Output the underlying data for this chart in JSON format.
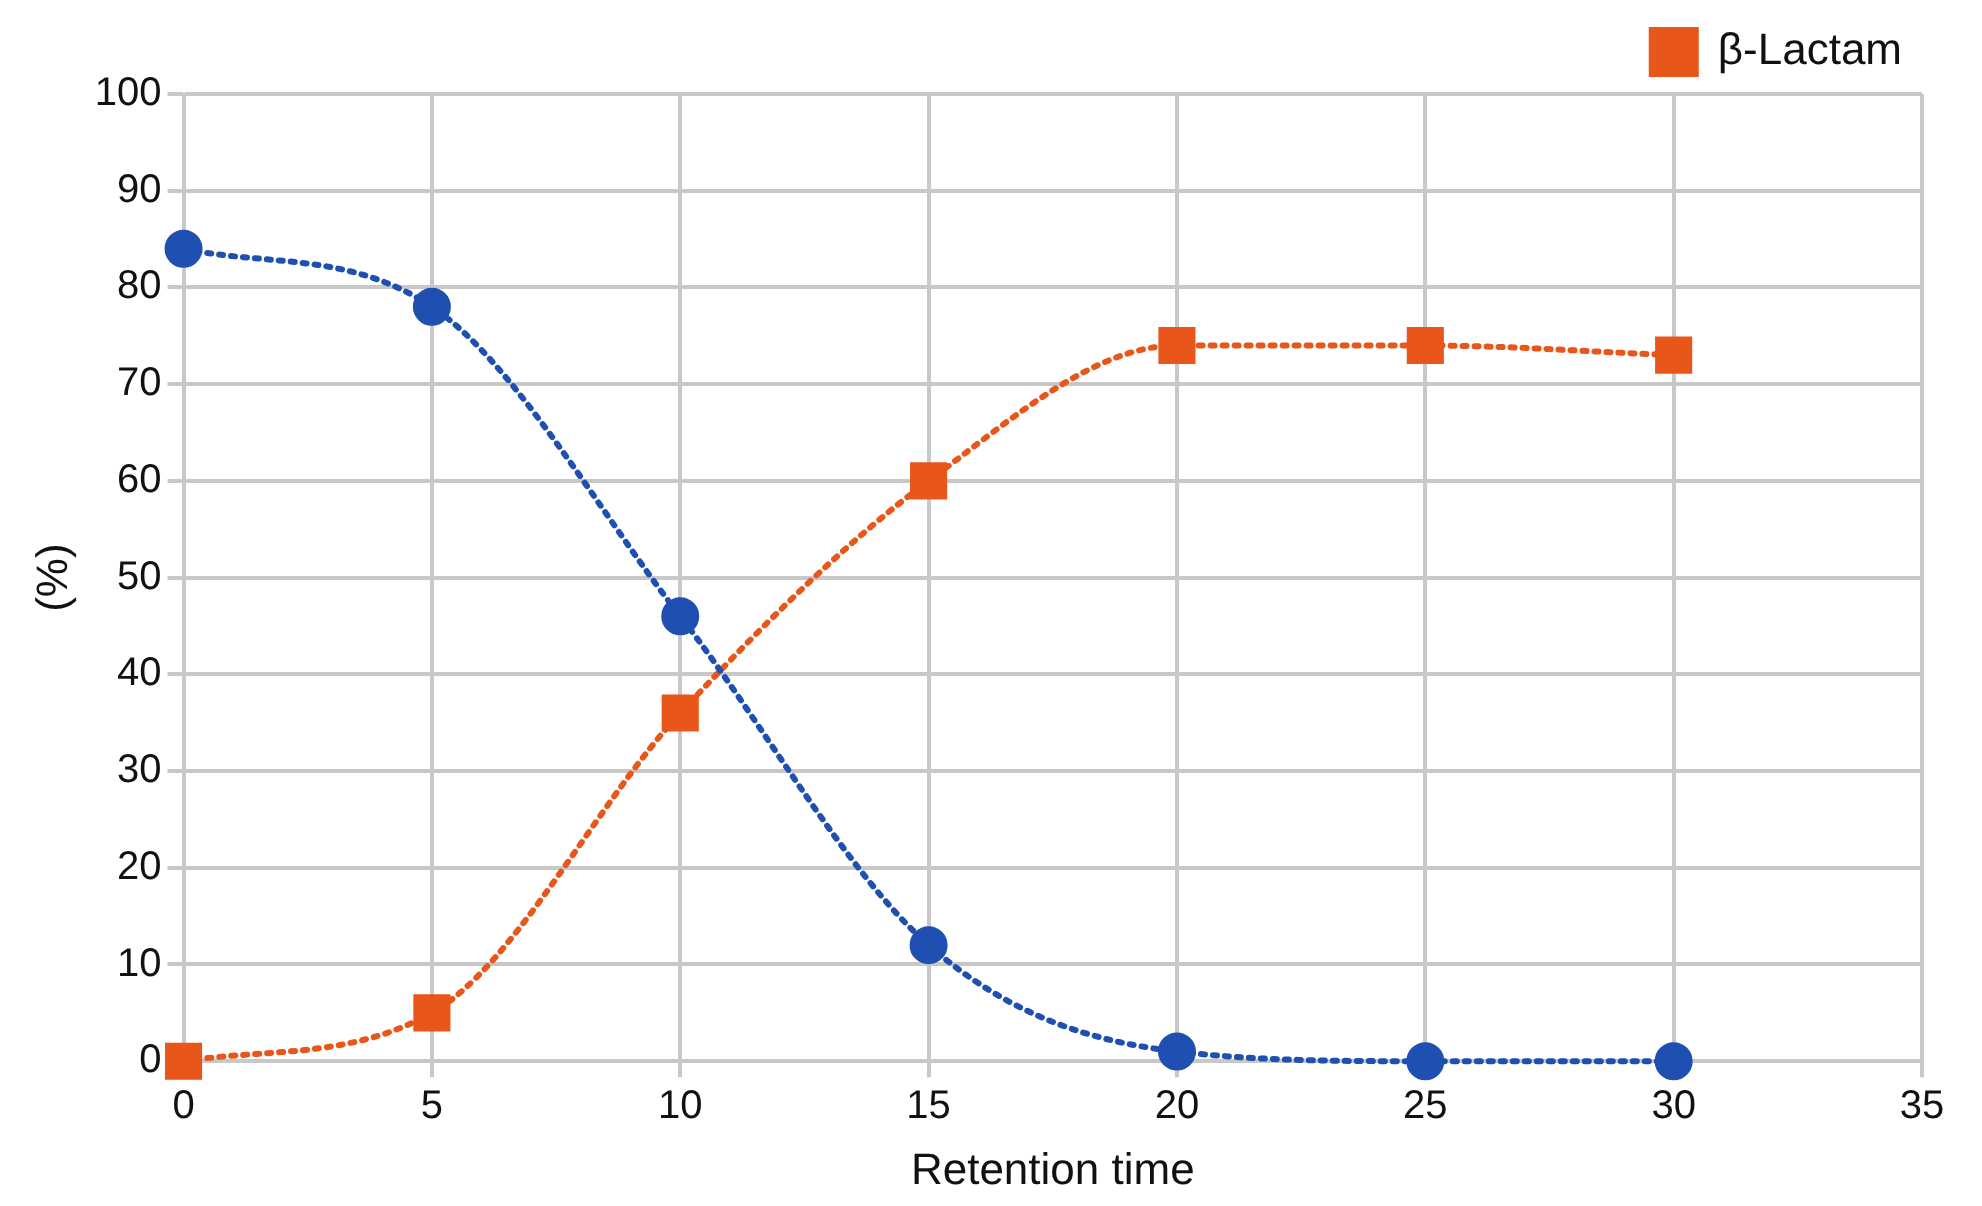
{
  "chart_data": {
    "type": "line",
    "xlabel": "Retention time",
    "ylabel": "(%)",
    "x": [
      0,
      5,
      10,
      15,
      20,
      25,
      30
    ],
    "series": [
      {
        "color": "#1f4fb0",
        "marker": "circle",
        "values": [
          84,
          78,
          46,
          12,
          1,
          0,
          0
        ]
      },
      {
        "name": "β-Lactam",
        "color": "#e8561a",
        "marker": "square",
        "values": [
          0,
          5,
          36,
          60,
          74,
          74,
          73
        ]
      }
    ],
    "xlim": [
      0,
      35
    ],
    "xticks": [
      0,
      5,
      10,
      15,
      20,
      25,
      30,
      35
    ],
    "ylim": [
      0,
      100
    ],
    "yticks": [
      0,
      10,
      20,
      30,
      40,
      50,
      60,
      70,
      80,
      90,
      100
    ],
    "grid": true,
    "legend": "top right",
    "line_style": "dotted"
  }
}
